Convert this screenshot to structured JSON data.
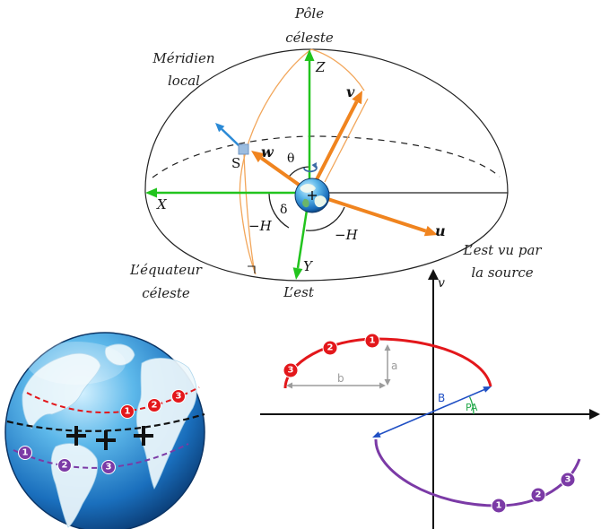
{
  "celestial_sphere": {
    "pole_line1": "Pôle",
    "pole_line2": "céleste",
    "meridian_line1": "Méridien",
    "meridian_line2": "local",
    "equator_line1": "L’équateur",
    "equator_line2": "céleste",
    "east": "L’est",
    "east_from_source_line1": "L’est vu par",
    "east_from_source_line2": "la source",
    "axis_x": "X",
    "axis_y": "Y",
    "axis_z": "Z",
    "vector_u": "u",
    "vector_v": "v",
    "vector_w": "w",
    "source": "S",
    "theta": "θ",
    "delta": "δ",
    "hour_angle_left": "−H",
    "hour_angle_right": "−H"
  },
  "earth_globe": {
    "red_track": [
      "1",
      "2",
      "3"
    ],
    "purple_track": [
      "1",
      "2",
      "3"
    ]
  },
  "uv_plane": {
    "axis_v": "v",
    "semi_minor_axis": "a",
    "semi_major_axis": "b",
    "baseline": "B",
    "position_angle": "PA",
    "red_track": [
      "1",
      "2",
      "3"
    ],
    "purple_track": [
      "1",
      "2",
      "3"
    ]
  },
  "colors": {
    "axis_green": "#22c41e",
    "vector_orange": "#f0841f",
    "meridian_orange": "#f2a65a",
    "source_blue": "#2b8ad6",
    "track_red": "#e3171b",
    "track_purple": "#7b3aa6",
    "baseline_blue": "#1f4fc4",
    "angle_green": "#22a84a",
    "dimension_grey": "#9c9c9c"
  }
}
